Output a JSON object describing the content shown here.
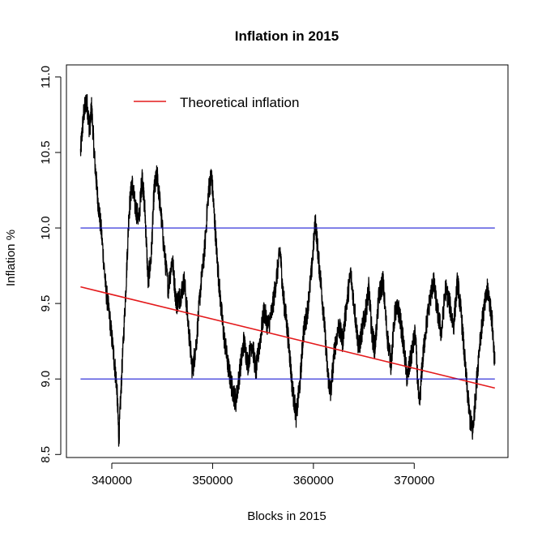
{
  "chart_data": {
    "type": "line",
    "title": "Inflation in 2015",
    "xlabel": "Blocks in 2015",
    "ylabel": "Inflation %",
    "xlim": [
      335500,
      379300
    ],
    "ylim": [
      8.48,
      11.08
    ],
    "x_ticks": [
      340000,
      350000,
      360000,
      370000
    ],
    "y_ticks": [
      8.5,
      9.0,
      9.5,
      10.0,
      10.5,
      11.0
    ],
    "x_tick_labels": [
      "340000",
      "350000",
      "360000",
      "370000"
    ],
    "y_tick_labels": [
      "8.5",
      "9.0",
      "9.5",
      "10.0",
      "10.5",
      "11.0"
    ],
    "grid": false,
    "legend": {
      "position": "top-left",
      "entries": [
        {
          "label": "Theoretical inflation",
          "color": "#e41a1c"
        }
      ]
    },
    "series": [
      {
        "name": "",
        "color": "#000000",
        "style": "jagged",
        "x": [
          336900,
          337200,
          337500,
          337800,
          338000,
          338300,
          338600,
          339000,
          339400,
          339800,
          340200,
          340500,
          340700,
          341000,
          341400,
          341700,
          342000,
          342300,
          342700,
          343000,
          343300,
          343600,
          343900,
          344200,
          344500,
          344800,
          345200,
          345600,
          346000,
          346400,
          346800,
          347200,
          347600,
          348000,
          348400,
          348800,
          349200,
          349600,
          349900,
          350200,
          350500,
          350800,
          351100,
          351500,
          351900,
          352300,
          352700,
          353100,
          353500,
          353900,
          354300,
          354700,
          355100,
          355500,
          355900,
          356300,
          356700,
          357000,
          357300,
          357600,
          357900,
          358300,
          358700,
          359000,
          359400,
          359800,
          360200,
          360500,
          360800,
          361100,
          361400,
          361700,
          362100,
          362500,
          362900,
          363300,
          363700,
          364100,
          364500,
          364900,
          365200,
          365500,
          365800,
          366100,
          366500,
          366900,
          367300,
          367700,
          368100,
          368500,
          368900,
          369300,
          369700,
          370100,
          370500,
          370800,
          371100,
          371500,
          371900,
          372300,
          372700,
          373100,
          373500,
          373900,
          374300,
          374700,
          375100,
          375500,
          375800,
          376100,
          376500,
          376900,
          377300,
          377700,
          378000
        ],
        "y": [
          10.5,
          10.75,
          10.85,
          10.65,
          10.8,
          10.45,
          10.2,
          9.95,
          9.6,
          9.4,
          9.15,
          8.95,
          8.6,
          9.05,
          9.6,
          10.1,
          10.3,
          10.15,
          10.05,
          10.35,
          10.1,
          9.65,
          9.8,
          10.25,
          10.35,
          10.15,
          9.85,
          9.6,
          9.8,
          9.5,
          9.55,
          9.65,
          9.35,
          9.05,
          9.25,
          9.6,
          9.85,
          10.25,
          10.35,
          10.05,
          9.75,
          9.5,
          9.3,
          9.1,
          8.95,
          8.85,
          9.05,
          9.25,
          9.1,
          9.25,
          9.05,
          9.25,
          9.45,
          9.35,
          9.45,
          9.65,
          9.85,
          9.55,
          9.4,
          9.2,
          8.95,
          8.75,
          9.0,
          9.3,
          9.45,
          9.7,
          10.05,
          9.8,
          9.6,
          9.35,
          9.05,
          8.9,
          9.2,
          9.35,
          9.25,
          9.5,
          9.7,
          9.45,
          9.2,
          9.35,
          9.45,
          9.6,
          9.3,
          9.2,
          9.55,
          9.65,
          9.3,
          9.1,
          9.45,
          9.45,
          9.25,
          9.0,
          9.15,
          9.3,
          8.8,
          9.1,
          9.3,
          9.5,
          9.65,
          9.45,
          9.3,
          9.6,
          9.5,
          9.35,
          9.65,
          9.4,
          9.05,
          8.75,
          8.65,
          8.9,
          9.25,
          9.45,
          9.6,
          9.4,
          9.1
        ]
      },
      {
        "name": "Theoretical inflation",
        "color": "#e41a1c",
        "x": [
          336900,
          378000
        ],
        "y": [
          9.61,
          8.94
        ]
      },
      {
        "name": "",
        "color": "#1f1fd6",
        "x": [
          336900,
          378000
        ],
        "y": [
          10.0,
          10.0
        ]
      },
      {
        "name": "",
        "color": "#1f1fd6",
        "x": [
          336900,
          378000
        ],
        "y": [
          9.0,
          9.0
        ]
      }
    ]
  }
}
